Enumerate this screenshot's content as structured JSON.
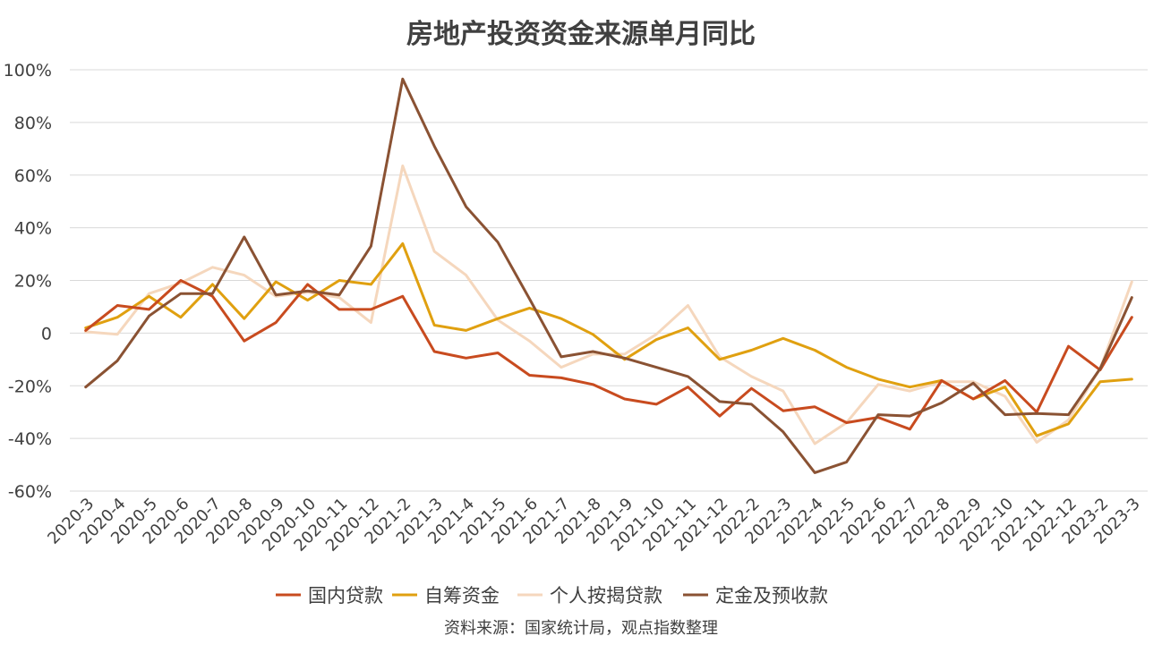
{
  "chart_data": {
    "type": "line",
    "title": "房地产投资资金来源单月同比",
    "source": "资料来源：国家统计局，观点指数整理",
    "ylim": [
      -60,
      100
    ],
    "yticks": [
      "-60%",
      "-40%",
      "-20%",
      "0",
      "20%",
      "40%",
      "60%",
      "80%",
      "100%"
    ],
    "grid": true,
    "legend_position": "bottom",
    "categories": [
      "2020-3",
      "2020-4",
      "2020-5",
      "2020-6",
      "2020-7",
      "2020-8",
      "2020-9",
      "2020-10",
      "2020-11",
      "2020-12",
      "2021-2",
      "2021-3",
      "2021-4",
      "2021-5",
      "2021-6",
      "2021-7",
      "2021-8",
      "2021-9",
      "2021-10",
      "2021-11",
      "2021-12",
      "2022-2",
      "2022-3",
      "2022-4",
      "2022-5",
      "2022-6",
      "2022-7",
      "2022-8",
      "2022-9",
      "2022-10",
      "2022-11",
      "2022-12",
      "2023-2",
      "2023-3"
    ],
    "series": [
      {
        "name": "国内贷款",
        "color": "#c84b1f",
        "values": [
          1,
          10.5,
          9,
          20,
          14,
          -3,
          4,
          18.5,
          9,
          9,
          14,
          -7,
          -9.5,
          -7.5,
          -16,
          -17,
          -19.5,
          -25,
          -27,
          -20.5,
          -31.5,
          -21,
          -29.5,
          -28,
          -34,
          -32,
          -36.5,
          -18,
          -25,
          -18,
          -30,
          -5,
          -14,
          6
        ]
      },
      {
        "name": "自筹资金",
        "color": "#e0a010",
        "values": [
          2,
          6,
          14,
          6,
          18.5,
          5.5,
          19.5,
          12.5,
          20,
          18.5,
          34,
          3,
          1,
          5.5,
          9.5,
          5.5,
          -0.5,
          -10,
          -2.5,
          2,
          -10,
          -6.5,
          -2,
          -6.5,
          -13,
          -17.5,
          -20.5,
          -18,
          -25,
          -20.5,
          -39,
          -34.5,
          -18.5,
          -17.5
        ]
      },
      {
        "name": "个人按揭贷款",
        "color": "#f5d7bd",
        "values": [
          0.5,
          -0.5,
          15,
          19,
          25,
          22,
          14,
          15.5,
          13.5,
          4,
          63.5,
          31,
          22,
          5,
          -3,
          -13,
          -8,
          -8,
          -0.5,
          10.5,
          -9,
          -16.5,
          -22,
          -42,
          -34,
          -19.5,
          -22,
          -18.5,
          -18.5,
          -24,
          -41.5,
          -33,
          -13.5,
          19.5
        ]
      },
      {
        "name": "定金及预收款",
        "color": "#8a5233",
        "values": [
          -20.5,
          -10.5,
          6.5,
          15,
          15,
          36.5,
          14.5,
          16,
          14.5,
          33,
          96.5,
          71,
          48,
          34.5,
          13,
          -9,
          -7,
          -9.5,
          -13,
          -16.5,
          -26,
          -27,
          -37.5,
          -53,
          -49,
          -31,
          -31.5,
          -26.5,
          -19,
          -31,
          -30.5,
          -31,
          -13.5,
          13.5
        ]
      }
    ]
  }
}
